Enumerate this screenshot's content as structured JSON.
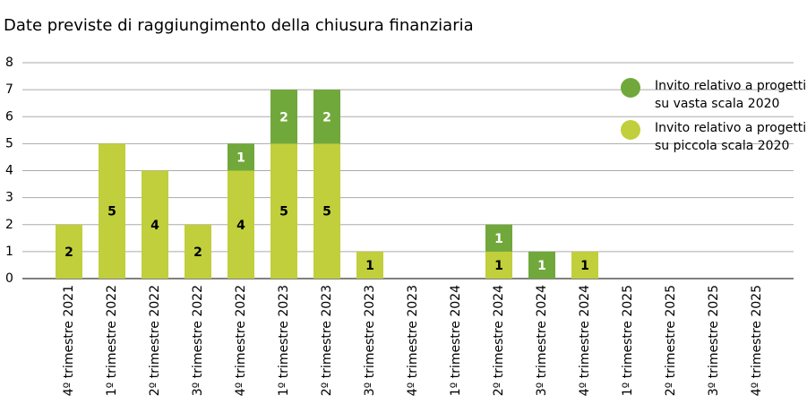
{
  "chart_data": {
    "type": "bar",
    "stacked": true,
    "title": "Date previste di raggiungimento della chiusura finanziaria",
    "categories": [
      "4º trimestre 2021",
      "1º trimestre 2022",
      "2º trimestre 2022",
      "3º trimestre 2022",
      "4º trimestre 2022",
      "1º trimestre 2023",
      "2º trimestre 2023",
      "3º trimestre 2023",
      "4º trimestre 2023",
      "1º trimestre 2024",
      "2º trimestre 2024",
      "3º trimestre 2024",
      "4º trimestre 2024",
      "1º trimestre 2025",
      "2º trimestre 2025",
      "3º trimestre 2025",
      "4º trimestre 2025"
    ],
    "series": [
      {
        "name": "Invito relativo a progetti su piccola scala 2020",
        "color": "#c0cf3b",
        "values": [
          2,
          5,
          4,
          2,
          4,
          5,
          5,
          1,
          null,
          null,
          1,
          null,
          1,
          null,
          null,
          null,
          null
        ]
      },
      {
        "name": "Invito relativo a progetti su vasta scala 2020",
        "color": "#71a83b",
        "values": [
          null,
          null,
          null,
          null,
          1,
          2,
          2,
          null,
          null,
          null,
          1,
          1,
          null,
          null,
          null,
          null,
          null
        ]
      }
    ],
    "ylim": [
      0,
      8
    ],
    "yticks": [
      0,
      1,
      2,
      3,
      4,
      5,
      6,
      7,
      8
    ],
    "grid": true
  }
}
